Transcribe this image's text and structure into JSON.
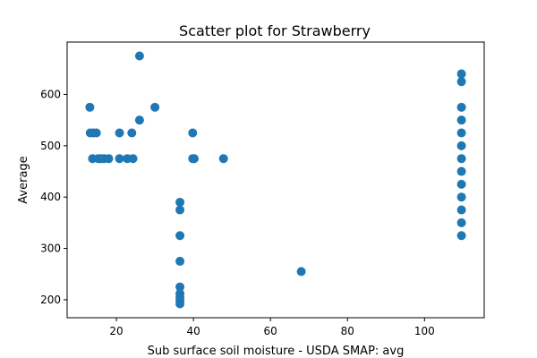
{
  "chart_data": {
    "type": "scatter",
    "title": "Scatter plot for Strawberry",
    "xlabel": "Sub surface soil moisture - USDA SMAP: avg",
    "ylabel": "Average",
    "xlim": [
      7.2,
      115.5
    ],
    "ylim": [
      165,
      702
    ],
    "xticks": [
      20,
      40,
      60,
      80,
      100
    ],
    "yticks": [
      200,
      300,
      400,
      500,
      600
    ],
    "grid": false,
    "marker_color": "#1f77b4",
    "points": [
      {
        "x": 13.1,
        "y": 575
      },
      {
        "x": 13.2,
        "y": 525
      },
      {
        "x": 14.0,
        "y": 525
      },
      {
        "x": 14.8,
        "y": 525
      },
      {
        "x": 13.8,
        "y": 475
      },
      {
        "x": 15.3,
        "y": 475
      },
      {
        "x": 16.0,
        "y": 475
      },
      {
        "x": 16.8,
        "y": 475
      },
      {
        "x": 18.0,
        "y": 475
      },
      {
        "x": 20.8,
        "y": 525
      },
      {
        "x": 20.8,
        "y": 475
      },
      {
        "x": 22.8,
        "y": 475
      },
      {
        "x": 24.0,
        "y": 525
      },
      {
        "x": 24.3,
        "y": 475
      },
      {
        "x": 26.0,
        "y": 675
      },
      {
        "x": 26.0,
        "y": 550
      },
      {
        "x": 30.0,
        "y": 575
      },
      {
        "x": 36.5,
        "y": 390
      },
      {
        "x": 36.5,
        "y": 375
      },
      {
        "x": 36.5,
        "y": 325
      },
      {
        "x": 36.5,
        "y": 275
      },
      {
        "x": 36.5,
        "y": 225
      },
      {
        "x": 36.5,
        "y": 212
      },
      {
        "x": 36.5,
        "y": 205
      },
      {
        "x": 36.5,
        "y": 198
      },
      {
        "x": 36.5,
        "y": 192
      },
      {
        "x": 39.8,
        "y": 525
      },
      {
        "x": 39.8,
        "y": 475
      },
      {
        "x": 40.2,
        "y": 475
      },
      {
        "x": 47.8,
        "y": 475
      },
      {
        "x": 68.0,
        "y": 255
      },
      {
        "x": 109.6,
        "y": 640
      },
      {
        "x": 109.6,
        "y": 625
      },
      {
        "x": 109.6,
        "y": 575
      },
      {
        "x": 109.6,
        "y": 550
      },
      {
        "x": 109.6,
        "y": 525
      },
      {
        "x": 109.6,
        "y": 500
      },
      {
        "x": 109.6,
        "y": 475
      },
      {
        "x": 109.6,
        "y": 450
      },
      {
        "x": 109.6,
        "y": 425
      },
      {
        "x": 109.6,
        "y": 400
      },
      {
        "x": 109.6,
        "y": 375
      },
      {
        "x": 109.6,
        "y": 350
      },
      {
        "x": 109.6,
        "y": 325
      }
    ]
  }
}
